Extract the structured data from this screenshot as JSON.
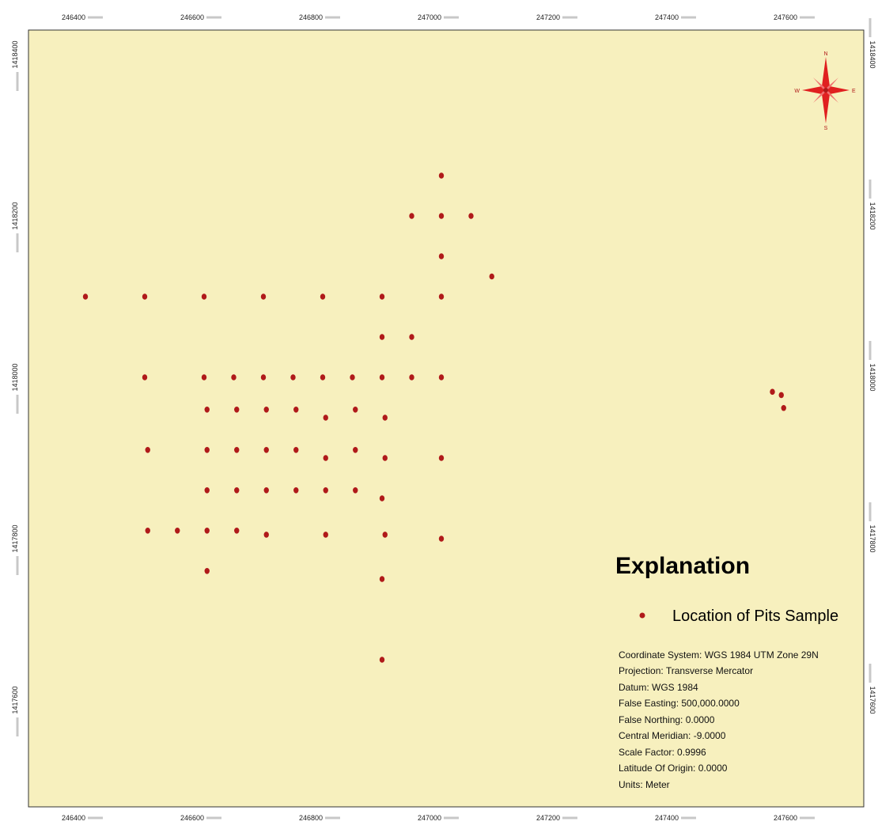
{
  "map": {
    "background_color": "#F7F0BE",
    "frame_color": "#333333",
    "point_color": "#B01A1A",
    "x_axis": {
      "ticks": [
        "246400",
        "246600",
        "246800",
        "247000",
        "247200",
        "247400",
        "247600"
      ]
    },
    "y_axis": {
      "ticks": [
        "1418400",
        "1418200",
        "1418000",
        "1417800",
        "1417600"
      ]
    },
    "points_easting_northing": [
      [
        247000,
        1418250
      ],
      [
        246950,
        1418200
      ],
      [
        247000,
        1418200
      ],
      [
        247050,
        1418200
      ],
      [
        247000,
        1418150
      ],
      [
        247085,
        1418125
      ],
      [
        246400,
        1418100
      ],
      [
        246500,
        1418100
      ],
      [
        246600,
        1418100
      ],
      [
        246700,
        1418100
      ],
      [
        246800,
        1418100
      ],
      [
        246900,
        1418100
      ],
      [
        247000,
        1418100
      ],
      [
        246900,
        1418050
      ],
      [
        246950,
        1418050
      ],
      [
        246500,
        1418000
      ],
      [
        246600,
        1418000
      ],
      [
        246650,
        1418000
      ],
      [
        246700,
        1418000
      ],
      [
        246750,
        1418000
      ],
      [
        246800,
        1418000
      ],
      [
        246850,
        1418000
      ],
      [
        246900,
        1418000
      ],
      [
        246950,
        1418000
      ],
      [
        247000,
        1418000
      ],
      [
        246605,
        1417960
      ],
      [
        246655,
        1417960
      ],
      [
        246705,
        1417960
      ],
      [
        246755,
        1417960
      ],
      [
        246805,
        1417950
      ],
      [
        246855,
        1417960
      ],
      [
        246905,
        1417950
      ],
      [
        246505,
        1417910
      ],
      [
        246605,
        1417910
      ],
      [
        246655,
        1417910
      ],
      [
        246705,
        1417910
      ],
      [
        246755,
        1417910
      ],
      [
        246805,
        1417900
      ],
      [
        246855,
        1417910
      ],
      [
        246905,
        1417900
      ],
      [
        247000,
        1417900
      ],
      [
        246605,
        1417860
      ],
      [
        246655,
        1417860
      ],
      [
        246705,
        1417860
      ],
      [
        246755,
        1417860
      ],
      [
        246805,
        1417860
      ],
      [
        246855,
        1417860
      ],
      [
        246900,
        1417850
      ],
      [
        246505,
        1417810
      ],
      [
        246555,
        1417810
      ],
      [
        246605,
        1417810
      ],
      [
        246655,
        1417810
      ],
      [
        246705,
        1417805
      ],
      [
        246805,
        1417805
      ],
      [
        246905,
        1417805
      ],
      [
        247000,
        1417800
      ],
      [
        246605,
        1417760
      ],
      [
        246900,
        1417750
      ],
      [
        246900,
        1417650
      ],
      [
        247558,
        1417982
      ],
      [
        247573,
        1417978
      ],
      [
        247577,
        1417962
      ]
    ]
  },
  "north_arrow": {
    "icon": "compass-rose-icon",
    "color": "#E02020",
    "labels": {
      "n": "N",
      "s": "S",
      "e": "E",
      "w": "W"
    }
  },
  "legend": {
    "title": "Explanation",
    "item_label": "Location of Pits Sample",
    "item_symbol_color": "#B01A1A"
  },
  "coordinate_system": {
    "lines": [
      "Coordinate System: WGS 1984 UTM Zone 29N",
      "Projection: Transverse Mercator",
      "Datum: WGS 1984",
      "False Easting: 500,000.0000",
      "False Northing: 0.0000",
      "Central Meridian: -9.0000",
      "Scale Factor: 0.9996",
      "Latitude Of Origin: 0.0000",
      "Units: Meter"
    ]
  }
}
